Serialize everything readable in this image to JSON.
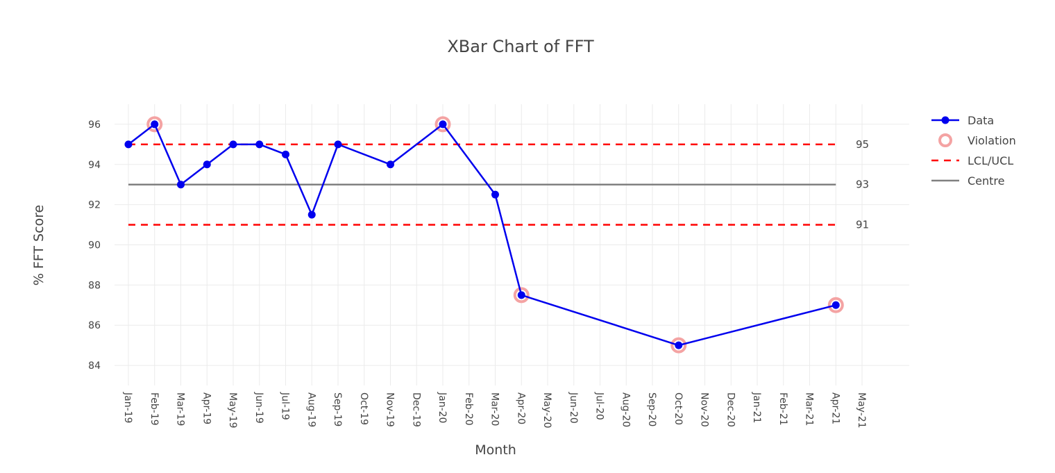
{
  "chart_data": {
    "type": "line",
    "title": "XBar Chart of FFT",
    "xlabel": "Month",
    "ylabel": "% FFT Score",
    "ylim": [
      83,
      97
    ],
    "y_ticks": [
      84,
      86,
      88,
      90,
      92,
      94,
      96
    ],
    "x_ticks": [
      "Jan-19",
      "Feb-19",
      "Mar-19",
      "Apr-19",
      "May-19",
      "Jun-19",
      "Jul-19",
      "Aug-19",
      "Sep-19",
      "Oct-19",
      "Nov-19",
      "Dec-19",
      "Jan-20",
      "Feb-20",
      "Mar-20",
      "Apr-20",
      "May-20",
      "Jun-20",
      "Jul-20",
      "Aug-20",
      "Sep-20",
      "Oct-20",
      "Nov-20",
      "Dec-20",
      "Jan-21",
      "Feb-21",
      "Mar-21",
      "Apr-21",
      "May-21"
    ],
    "grid": true,
    "legend_position": "top-right",
    "series": [
      {
        "name": "Data",
        "color": "#0000ee",
        "x": [
          "Jan-19",
          "Feb-19",
          "Mar-19",
          "Apr-19",
          "May-19",
          "Jun-19",
          "Jul-19",
          "Aug-19",
          "Sep-19",
          "Nov-19",
          "Jan-20",
          "Mar-20",
          "Apr-20",
          "Oct-20",
          "Apr-21"
        ],
        "y": [
          95,
          96,
          93,
          94,
          95,
          95,
          94.5,
          91.5,
          95,
          94,
          96,
          92.5,
          87.5,
          85,
          87
        ]
      },
      {
        "name": "Violation",
        "color": "#f4a3a3",
        "x": [
          "Feb-19",
          "Jan-20",
          "Apr-20",
          "Oct-20",
          "Apr-21"
        ],
        "y": [
          96,
          96,
          87.5,
          85,
          87
        ]
      },
      {
        "name": "LCL/UCL",
        "color": "#ff0000",
        "lines": [
          {
            "x": [
              "Jan-19",
              "Apr-21"
            ],
            "y": [
              95,
              95
            ],
            "label": "95"
          },
          {
            "x": [
              "Jan-19",
              "Apr-21"
            ],
            "y": [
              91,
              91
            ],
            "label": "91"
          }
        ]
      },
      {
        "name": "Centre",
        "color": "#808080",
        "lines": [
          {
            "x": [
              "Jan-19",
              "Apr-21"
            ],
            "y": [
              93,
              93
            ],
            "label": "93"
          }
        ]
      }
    ]
  }
}
